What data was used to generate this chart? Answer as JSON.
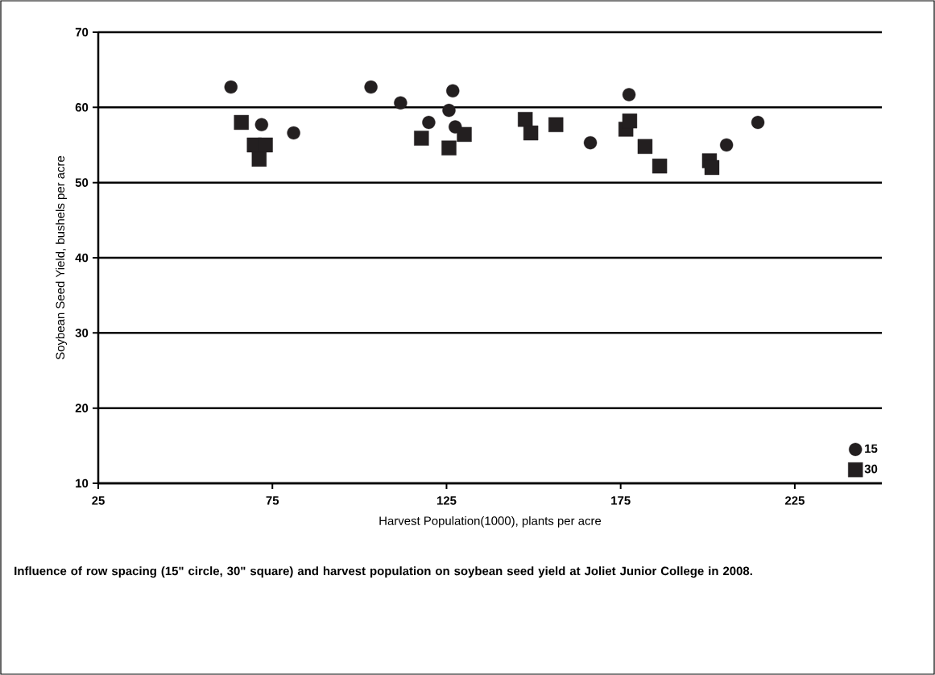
{
  "chart_data": {
    "type": "scatter",
    "xlabel": "Harvest Population(1000), plants per acre",
    "ylabel": "Soybean Seed Yield, bushels per acre",
    "annotations": [
      "Influence of row spacing (15\" circle, 30\" square) and harvest population on soybean seed yield at Joliet Junior College in 2008."
    ],
    "series": [
      {
        "name": "15",
        "color": "#231f20",
        "marker": "circle",
        "x": [
          63.1,
          71.9,
          81.1,
          103.3,
          111.8,
          119.9,
          125.7,
          126.8,
          127.5,
          166.3,
          177.4,
          205.4,
          214.4
        ],
        "values": [
          62.7,
          57.7,
          56.6,
          62.7,
          60.6,
          58.0,
          59.6,
          62.2,
          57.4,
          55.3,
          61.7,
          55.0,
          58.0
        ]
      },
      {
        "name": "30",
        "color": "#231f20",
        "marker": "square",
        "x": [
          66.1,
          69.8,
          73.0,
          71.2,
          117.8,
          125.7,
          130.1,
          147.6,
          149.2,
          156.4,
          176.5,
          177.6,
          182.0,
          186.2,
          200.5,
          201.2
        ],
        "values": [
          58.0,
          55.0,
          55.0,
          53.1,
          55.9,
          54.6,
          56.4,
          58.4,
          56.6,
          57.7,
          57.1,
          58.2,
          54.8,
          52.2,
          52.9,
          52.0
        ]
      }
    ],
    "xlim": [
      25,
      250
    ],
    "xticks": [
      25,
      75,
      125,
      175,
      225
    ],
    "ylim": [
      10,
      70
    ],
    "yticks": [
      10,
      20,
      30,
      40,
      50,
      60,
      70
    ],
    "grid": "y",
    "legend": "bottom right"
  }
}
